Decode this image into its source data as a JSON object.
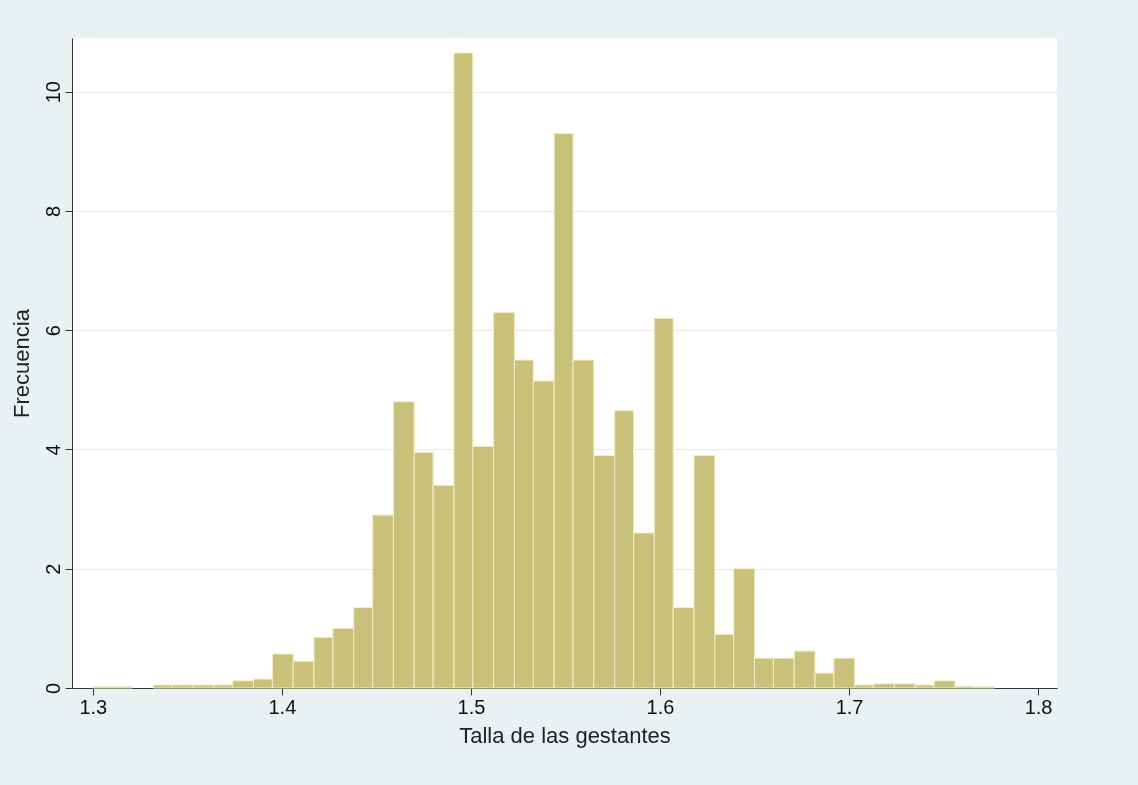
{
  "chart_data": {
    "type": "histogram",
    "xlabel": "Talla de las gestantes",
    "ylabel": "Frecuencia",
    "color": "#c9c07a",
    "bins": [
      1.3,
      1.311,
      1.321,
      1.332,
      1.342,
      1.353,
      1.364,
      1.374,
      1.385,
      1.395,
      1.406,
      1.417,
      1.427,
      1.438,
      1.448,
      1.459,
      1.47,
      1.48,
      1.491,
      1.501,
      1.512,
      1.523,
      1.533,
      1.544,
      1.554,
      1.565,
      1.576,
      1.586,
      1.597,
      1.607,
      1.618,
      1.629,
      1.639,
      1.65,
      1.66,
      1.671,
      1.682,
      1.692,
      1.703,
      1.713,
      1.724,
      1.735,
      1.745,
      1.756,
      1.766,
      1.777
    ],
    "values": [
      0.02,
      0.02,
      0,
      0.05,
      0.05,
      0.05,
      0.05,
      0.12,
      0.15,
      0.57,
      0.45,
      0.85,
      1.0,
      1.35,
      2.9,
      4.8,
      3.95,
      3.4,
      10.65,
      4.05,
      6.3,
      5.5,
      5.15,
      9.3,
      5.5,
      3.9,
      4.65,
      2.6,
      6.2,
      1.35,
      3.9,
      0.9,
      2.0,
      0.5,
      0.5,
      0.62,
      0.25,
      0.5,
      0.05,
      0.07,
      0.07,
      0.05,
      0.12,
      0.03,
      0.02
    ],
    "xlim": [
      1.289,
      1.81
    ],
    "xticks": [
      1.3,
      1.4,
      1.5,
      1.6,
      1.7,
      1.8
    ],
    "ylim": [
      0,
      10.9
    ],
    "yticks": [
      0,
      2,
      4,
      6,
      8,
      10
    ],
    "grid": "y"
  }
}
